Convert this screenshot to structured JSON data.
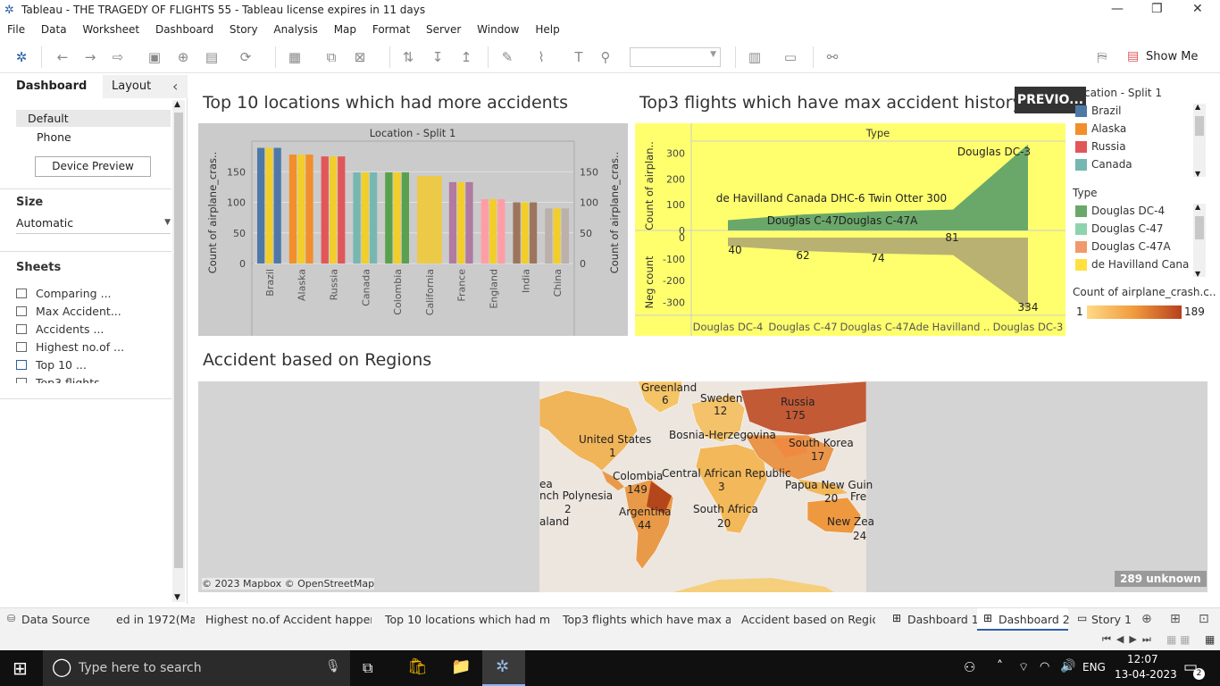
{
  "window": {
    "title": "Tableau - THE TRAGEDY OF FLIGHTS 55 - Tableau license expires in 11 days",
    "minimize": "—",
    "restore": "❐",
    "close": "✕"
  },
  "menu": [
    "File",
    "Data",
    "Worksheet",
    "Dashboard",
    "Story",
    "Analysis",
    "Map",
    "Format",
    "Server",
    "Window",
    "Help"
  ],
  "toolbar": {
    "show_me": "Show Me"
  },
  "leftpane": {
    "tab_dashboard": "Dashboard",
    "tab_layout": "Layout",
    "collapse": "‹",
    "devices": [
      "Default",
      "Phone"
    ],
    "device_preview": "Device Preview",
    "size_title": "Size",
    "size_value": "Automatic",
    "sheets_title": "Sheets",
    "sheets": [
      "Comparing ...",
      "Max Accident...",
      "Accidents ...",
      "Highest no.of ...",
      "Top 10 ...",
      "Top3 flights"
    ]
  },
  "colors": {
    "brazil": "#4e79a7",
    "alaska": "#f28e2b",
    "russia": "#e15759",
    "canada": "#76b7b2",
    "colombia": "#59a14f",
    "california": "#edc948",
    "france": "#b07aa1",
    "england": "#ff9da7",
    "india": "#9c755f",
    "china": "#bab0ac",
    "yellow_bar": "#f1ce2b",
    "gray_bg": "#cbcbcb",
    "yellow_bg": "#ffff6e",
    "green_area": "#6aa86a",
    "olive_area": "#b9b172"
  },
  "dashboard": {
    "title1": "Top 10 locations which had more accidents",
    "title2": "Top3 flights which have max accident history",
    "title3": "Accident based on Regions",
    "previous_btn": "PREVIO...",
    "chart1_header": "Location - Split 1",
    "chart1_ylabel": "Count of airplane_cras..",
    "chart1_ylabel_right": "Count of airplane_cras..",
    "chart2_header": "Type",
    "chart2_ylabel_top": "Count of airplan..",
    "chart2_ylabel_bottom": "Neg count",
    "map_credit": "© 2023 Mapbox © OpenStreetMap",
    "unknown": "289 unknown",
    "map_labels": [
      {
        "t": "Greenland"
      },
      {
        "t": "6"
      },
      {
        "t": "Sweden"
      },
      {
        "t": "12"
      },
      {
        "t": "Russia"
      },
      {
        "t": "175"
      },
      {
        "t": "United States"
      },
      {
        "t": "1"
      },
      {
        "t": "Bosnia-Herzegovina"
      },
      {
        "t": "South Korea"
      },
      {
        "t": "17"
      },
      {
        "t": "Central African Republic"
      },
      {
        "t": "3"
      },
      {
        "t": "Colombia"
      },
      {
        "t": "149"
      },
      {
        "t": "Papua New Guin"
      },
      {
        "t": "20"
      },
      {
        "t": "Fre"
      },
      {
        "t": "nch Polynesia"
      },
      {
        "t": "2"
      },
      {
        "t": "Argentina"
      },
      {
        "t": "44"
      },
      {
        "t": "South Africa"
      },
      {
        "t": "20"
      },
      {
        "t": "New Zea"
      },
      {
        "t": "24"
      },
      {
        "t": "ea"
      },
      {
        "t": "aland"
      }
    ]
  },
  "legend": {
    "loc_title": "cation - Split 1",
    "loc_items": [
      "Brazil",
      "Alaska",
      "Russia",
      "Canada"
    ],
    "type_title": "Type",
    "type_items": [
      "Douglas DC-4",
      "Douglas C-47",
      "Douglas C-47A",
      "de Havilland Cana..."
    ],
    "count_title": "Count of airplane_crash.c..",
    "count_min": "1",
    "count_max": "189"
  },
  "chart_data": [
    {
      "type": "bar",
      "title": "Top 10 locations which had more accidents",
      "xlabel": "Location - Split 1",
      "ylabel": "Count of airplane_cras..",
      "categories": [
        "Brazil",
        "Alaska",
        "Russia",
        "Canada",
        "Colombia",
        "California",
        "France",
        "England",
        "India",
        "China"
      ],
      "values": [
        189,
        178,
        175,
        149,
        149,
        143,
        133,
        105,
        100,
        90
      ],
      "yticks": [
        "0",
        "50",
        "100",
        "150"
      ],
      "ylim": [
        0,
        200
      ]
    },
    {
      "type": "area",
      "title": "Top3 flights which have max accident history",
      "xlabel": "Type",
      "categories": [
        "Douglas DC-4",
        "Douglas C-47",
        "Douglas C-47A",
        "de Havilland ..",
        "Douglas DC-3"
      ],
      "series": [
        {
          "values": [
            40,
            62,
            74,
            81,
            334
          ]
        },
        {
          "values": [
            -40,
            -62,
            -74,
            -81,
            -334
          ]
        }
      ],
      "point_labels": [
        "40",
        "62",
        "74",
        "81",
        "334"
      ],
      "annotations": [
        "Douglas DC-3",
        "de Havilland Canada DHC-6 Twin Otter 300",
        "Douglas C-47",
        "Douglas C-47A"
      ],
      "yticks_top": [
        "0",
        "100",
        "200",
        "300"
      ],
      "yticks_bottom": [
        "0",
        "-100",
        "-200",
        "-300"
      ],
      "ylim": [
        -340,
        340
      ]
    }
  ],
  "tabs": {
    "data_source": "Data Source",
    "items": [
      "ed in 1972(Ma...",
      "Highest no.of Accident happene...",
      "Top 10 locations which had mor...",
      "Top3 flights which have max acc...",
      "Accident based on Regions",
      "Dashboard 1",
      "Dashboard 2",
      "Story 1"
    ]
  },
  "taskbar": {
    "search": "Type here to search",
    "lang": "ENG",
    "time": "12:07",
    "date": "13-04-2023",
    "notif": "2"
  }
}
